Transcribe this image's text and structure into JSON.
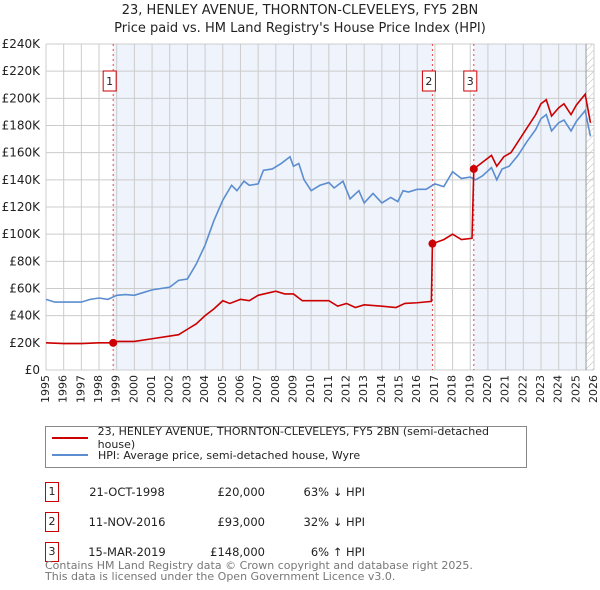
{
  "title": "23, HENLEY AVENUE, THORNTON-CLEVELEYS, FY5 2BN",
  "subtitle": "Price paid vs. HM Land Registry's House Price Index (HPI)",
  "chart_data": {
    "type": "line",
    "title": "23, HENLEY AVENUE, THORNTON-CLEVELEYS, FY5 2BN",
    "subtitle": "Price paid vs. HM Land Registry's House Price Index (HPI)",
    "xlim": [
      1995,
      2026
    ],
    "ylim": [
      0,
      240000
    ],
    "xticks": [
      "1995",
      "1996",
      "1997",
      "1998",
      "1999",
      "2000",
      "2001",
      "2002",
      "2003",
      "2004",
      "2005",
      "2006",
      "2007",
      "2008",
      "2009",
      "2010",
      "2011",
      "2012",
      "2013",
      "2014",
      "2015",
      "2016",
      "2017",
      "2018",
      "2019",
      "2020",
      "2021",
      "2022",
      "2023",
      "2024",
      "2025",
      "2026"
    ],
    "yticks": [
      "£0",
      "£20K",
      "£40K",
      "£60K",
      "£80K",
      "£100K",
      "£120K",
      "£140K",
      "£160K",
      "£180K",
      "£200K",
      "£220K",
      "£240K"
    ],
    "grid": true,
    "colors": {
      "property": "#cc0000",
      "hpi": "#5b8dd0",
      "shade": "#eef3fc"
    },
    "series": [
      {
        "name": "23, HENLEY AVENUE, THORNTON-CLEVELEYS, FY5 2BN (semi-detached house)",
        "x": [
          1995,
          1996,
          1997,
          1998,
          1998.8,
          1999,
          2000,
          2001,
          2002,
          2002.5,
          2003,
          2003.5,
          2004,
          2004.5,
          2005,
          2005.4,
          2006,
          2006.5,
          2007,
          2008,
          2008.5,
          2009,
          2009.5,
          2010,
          2011,
          2011.5,
          2012,
          2012.5,
          2013,
          2014,
          2014.8,
          2015.3,
          2016,
          2016.8,
          2016.86,
          2017.5,
          2018,
          2018.5,
          2019.1,
          2019.2,
          2019.6,
          2020.2,
          2020.5,
          2020.9,
          2021.3,
          2021.7,
          2022.2,
          2022.7,
          2023,
          2023.3,
          2023.6,
          2024,
          2024.3,
          2024.7,
          2025,
          2025.5,
          2025.8
        ],
        "y": [
          20000,
          19500,
          19500,
          20000,
          20000,
          21000,
          21000,
          23000,
          25000,
          26000,
          30000,
          34000,
          40000,
          45000,
          51000,
          49000,
          52000,
          51000,
          55000,
          58000,
          56000,
          56000,
          51000,
          51000,
          51000,
          47000,
          49000,
          46000,
          48000,
          47000,
          46000,
          49000,
          49500,
          50500,
          93000,
          96000,
          100000,
          96000,
          97000,
          148000,
          152000,
          158000,
          150000,
          157000,
          160000,
          168000,
          178000,
          188000,
          196000,
          199000,
          187000,
          193000,
          196000,
          188000,
          195000,
          203000,
          182000
        ]
      },
      {
        "name": "HPI: Average price, semi-detached house, Wyre",
        "x": [
          1995,
          1995.5,
          1996,
          1997,
          1997.5,
          1998,
          1998.5,
          1999,
          1999.5,
          2000,
          2000.5,
          2001,
          2001.5,
          2002,
          2002.5,
          2003,
          2003.5,
          2004,
          2004.5,
          2005,
          2005.5,
          2005.8,
          2006.2,
          2006.5,
          2007,
          2007.3,
          2007.8,
          2008.3,
          2008.8,
          2009,
          2009.3,
          2009.6,
          2010,
          2010.5,
          2011,
          2011.3,
          2011.8,
          2012.2,
          2012.7,
          2013,
          2013.5,
          2014,
          2014.5,
          2014.9,
          2015.2,
          2015.5,
          2016,
          2016.5,
          2017,
          2017.5,
          2018,
          2018.5,
          2019,
          2019.3,
          2019.7,
          2020.2,
          2020.5,
          2020.8,
          2021.2,
          2021.7,
          2022.2,
          2022.7,
          2023,
          2023.3,
          2023.6,
          2024,
          2024.3,
          2024.7,
          2025,
          2025.5,
          2025.8
        ],
        "y": [
          52000,
          50000,
          50000,
          50000,
          52000,
          53000,
          52000,
          55000,
          55500,
          55000,
          57000,
          59000,
          60000,
          61000,
          66000,
          67000,
          78000,
          92000,
          110000,
          125000,
          136000,
          132000,
          139000,
          136000,
          137000,
          147000,
          148000,
          152000,
          157000,
          150000,
          152000,
          140000,
          132000,
          136000,
          138000,
          134000,
          139000,
          126000,
          132000,
          123000,
          130000,
          123000,
          127000,
          124000,
          132000,
          131000,
          133000,
          133000,
          137000,
          135000,
          146000,
          141000,
          142000,
          140000,
          143000,
          149000,
          140000,
          148000,
          150000,
          158000,
          168000,
          177000,
          185000,
          188000,
          176000,
          182000,
          184000,
          176000,
          183000,
          191000,
          172000
        ]
      }
    ],
    "sales": [
      {
        "n": "1",
        "date": "21-OCT-1998",
        "x": 1998.8,
        "price": "£20,000",
        "value": 20000,
        "hpi": "63% ↓ HPI"
      },
      {
        "n": "2",
        "date": "11-NOV-2016",
        "x": 2016.86,
        "price": "£93,000",
        "value": 93000,
        "hpi": "32% ↓ HPI"
      },
      {
        "n": "3",
        "date": "15-MAR-2019",
        "x": 2019.2,
        "price": "£148,000",
        "value": 148000,
        "hpi": "6% ↑ HPI"
      }
    ]
  },
  "footer": {
    "line1": "Contains HM Land Registry data © Crown copyright and database right 2025.",
    "line2": "This data is licensed under the Open Government Licence v3.0."
  }
}
